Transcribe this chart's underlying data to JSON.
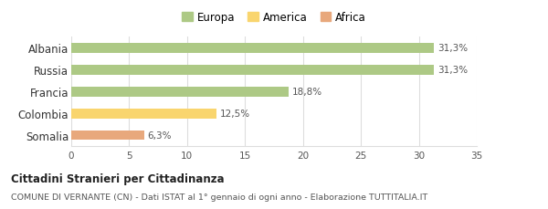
{
  "categories": [
    "Albania",
    "Russia",
    "Francia",
    "Colombia",
    "Somalia"
  ],
  "values": [
    31.3,
    31.3,
    18.8,
    12.5,
    6.3
  ],
  "labels": [
    "31,3%",
    "31,3%",
    "18,8%",
    "12,5%",
    "6,3%"
  ],
  "colors": [
    "#adc985",
    "#adc985",
    "#adc985",
    "#f9d56e",
    "#e8a87c"
  ],
  "legend": [
    {
      "label": "Europa",
      "color": "#adc985"
    },
    {
      "label": "America",
      "color": "#f9d56e"
    },
    {
      "label": "Africa",
      "color": "#e8a87c"
    }
  ],
  "xlim": [
    0,
    35
  ],
  "xticks": [
    0,
    5,
    10,
    15,
    20,
    25,
    30,
    35
  ],
  "title_bold": "Cittadini Stranieri per Cittadinanza",
  "subtitle": "COMUNE DI VERNANTE (CN) - Dati ISTAT al 1° gennaio di ogni anno - Elaborazione TUTTITALIA.IT",
  "background_color": "#ffffff",
  "grid_color": "#dddddd",
  "bar_height": 0.45
}
